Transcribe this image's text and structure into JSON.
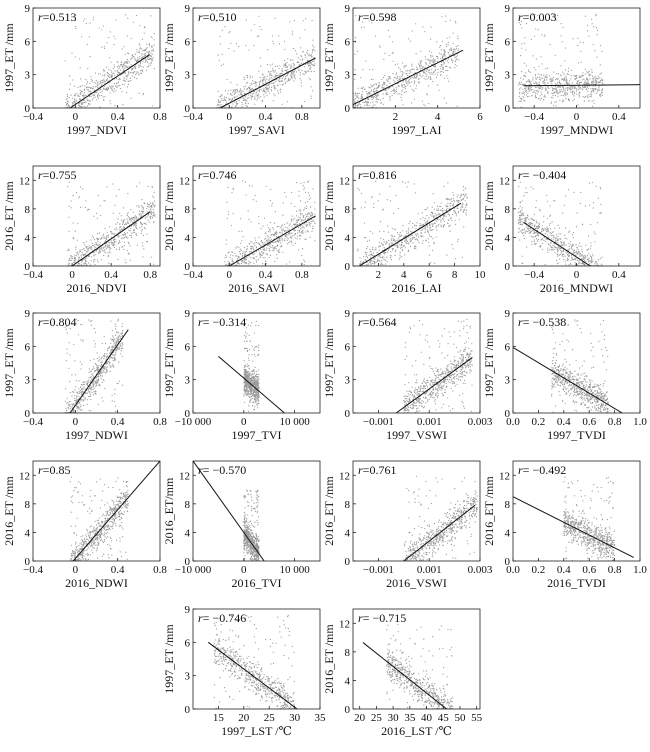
{
  "colors": {
    "points": "#9a9a9a",
    "axis": "#222222",
    "line": "#111111"
  },
  "chart_data": [
    {
      "type": "scatter",
      "xlabel": "1997_NDVI",
      "ylabel": "1997_ET /mm",
      "r_text": "=0.513",
      "xlim": [
        -0.4,
        0.8
      ],
      "ylim": [
        0,
        9
      ],
      "xticks": [
        -0.4,
        0,
        0.4,
        0.8
      ],
      "xtick_labels": [
        "−0.4",
        "0",
        "0.4",
        "0.8"
      ],
      "yticks": [
        0,
        3,
        6,
        9
      ],
      "ytick_labels": [
        "0",
        "3",
        "6",
        "9"
      ],
      "fit_line": [
        [
          -0.05,
          0
        ],
        [
          0.7,
          4.8
        ]
      ],
      "point_cloud": {
        "x_min": -0.1,
        "x_max": 0.75,
        "y_min": 0,
        "y_max": 8.5
      }
    },
    {
      "type": "scatter",
      "xlabel": "1997_SAVI",
      "ylabel": "1997_ET /mm",
      "r_text": "=0.510",
      "xlim": [
        -0.4,
        1.0
      ],
      "ylim": [
        0,
        9
      ],
      "xticks": [
        -0.4,
        0,
        0.4,
        0.8
      ],
      "xtick_labels": [
        "−0.4",
        "0",
        "0.4",
        "0.8"
      ],
      "yticks": [
        0,
        3,
        6,
        9
      ],
      "ytick_labels": [
        "0",
        "3",
        "6",
        "9"
      ],
      "fit_line": [
        [
          -0.1,
          0
        ],
        [
          0.95,
          4.5
        ]
      ],
      "point_cloud": {
        "x_min": -0.15,
        "x_max": 0.95,
        "y_min": 0,
        "y_max": 8.5
      }
    },
    {
      "type": "scatter",
      "xlabel": "1997_LAI",
      "ylabel": "1997_ET /mm",
      "r_text": "=0.598",
      "xlim": [
        0,
        6
      ],
      "ylim": [
        0,
        9
      ],
      "xticks": [
        2,
        4,
        6
      ],
      "xtick_labels": [
        "2",
        "4",
        "6"
      ],
      "yticks": [
        0,
        3,
        6,
        9
      ],
      "ytick_labels": [
        "0",
        "3",
        "6",
        "9"
      ],
      "fit_line": [
        [
          0,
          0.3
        ],
        [
          5.2,
          5.2
        ]
      ],
      "point_cloud": {
        "x_min": 0,
        "x_max": 5,
        "y_min": 0,
        "y_max": 8.5
      }
    },
    {
      "type": "scatter",
      "xlabel": "1997_MNDWI",
      "ylabel": "1997_ET /mm",
      "r_text": "=0.003",
      "xlim": [
        -0.6,
        0.6
      ],
      "ylim": [
        0,
        9
      ],
      "xticks": [
        -0.4,
        0,
        0.4
      ],
      "xtick_labels": [
        "−0.4",
        "0",
        "0.4"
      ],
      "yticks": [
        0,
        3,
        6,
        9
      ],
      "ytick_labels": [
        "0",
        "3",
        "6",
        "9"
      ],
      "fit_line": [
        [
          -0.5,
          2.0
        ],
        [
          0.6,
          2.1
        ]
      ],
      "point_cloud": {
        "x_min": -0.55,
        "x_max": 0.25,
        "y_min": 0,
        "y_max": 8.5
      }
    },
    {
      "type": "scatter",
      "xlabel": "2016_NDVI",
      "ylabel": "2016_ET /mm",
      "r_text": "=0.755",
      "xlim": [
        -0.4,
        0.9
      ],
      "ylim": [
        0,
        14
      ],
      "xticks": [
        -0.4,
        0,
        0.4,
        0.8
      ],
      "xtick_labels": [
        "−0.4",
        "0",
        "0.4",
        "0.8"
      ],
      "yticks": [
        0,
        4,
        8,
        12
      ],
      "ytick_labels": [
        "0",
        "4",
        "8",
        "12"
      ],
      "fit_line": [
        [
          0,
          0
        ],
        [
          0.8,
          7.6
        ]
      ],
      "point_cloud": {
        "x_min": -0.05,
        "x_max": 0.85,
        "y_min": 0,
        "y_max": 12
      }
    },
    {
      "type": "scatter",
      "xlabel": "2016_SAVI",
      "ylabel": "2016_ET /mm",
      "r_text": "=0.746",
      "xlim": [
        -0.4,
        1.0
      ],
      "ylim": [
        0,
        14
      ],
      "xticks": [
        -0.4,
        0,
        0.4,
        0.8
      ],
      "xtick_labels": [
        "−0.4",
        "0",
        "0.4",
        "0.8"
      ],
      "yticks": [
        0,
        4,
        8,
        12
      ],
      "ytick_labels": [
        "0",
        "4",
        "8",
        "12"
      ],
      "fit_line": [
        [
          0,
          0
        ],
        [
          0.95,
          7.0
        ]
      ],
      "point_cloud": {
        "x_min": -0.05,
        "x_max": 0.95,
        "y_min": 0,
        "y_max": 12
      }
    },
    {
      "type": "scatter",
      "xlabel": "2016_LAI",
      "ylabel": "2016_ET /mm",
      "r_text": "=0.816",
      "xlim": [
        0,
        10
      ],
      "ylim": [
        0,
        14
      ],
      "xticks": [
        2,
        4,
        6,
        8,
        10
      ],
      "xtick_labels": [
        "2",
        "4",
        "6",
        "8",
        "10"
      ],
      "yticks": [
        0,
        4,
        8,
        12
      ],
      "ytick_labels": [
        "0",
        "4",
        "8",
        "12"
      ],
      "fit_line": [
        [
          0.5,
          0
        ],
        [
          8.5,
          8.8
        ]
      ],
      "point_cloud": {
        "x_min": 0.3,
        "x_max": 9,
        "y_min": 0,
        "y_max": 12
      }
    },
    {
      "type": "scatter",
      "xlabel": "2016_MNDWI",
      "ylabel": "2016_ET /mm",
      "r_text": "= −0.404",
      "xlim": [
        -0.6,
        0.6
      ],
      "ylim": [
        0,
        14
      ],
      "xticks": [
        -0.4,
        0,
        0.4
      ],
      "xtick_labels": [
        "−0.4",
        "0",
        "0.4"
      ],
      "yticks": [
        0,
        4,
        8,
        12
      ],
      "ytick_labels": [
        "0",
        "4",
        "8",
        "12"
      ],
      "fit_line": [
        [
          -0.5,
          6.1
        ],
        [
          0.13,
          0
        ]
      ],
      "point_cloud": {
        "x_min": -0.55,
        "x_max": 0.25,
        "y_min": 0,
        "y_max": 12
      }
    },
    {
      "type": "scatter",
      "xlabel": "1997_NDWI",
      "ylabel": "1997_ET /mm",
      "r_text": "=0.804",
      "xlim": [
        -0.4,
        0.8
      ],
      "ylim": [
        0,
        9
      ],
      "xticks": [
        -0.4,
        0,
        0.4,
        0.8
      ],
      "xtick_labels": [
        "−0.4",
        "0",
        "0.4",
        "0.8"
      ],
      "yticks": [
        0,
        3,
        6,
        9
      ],
      "ytick_labels": [
        "0",
        "3",
        "6",
        "9"
      ],
      "fit_line": [
        [
          -0.05,
          0
        ],
        [
          0.5,
          7.5
        ]
      ],
      "point_cloud": {
        "x_min": -0.1,
        "x_max": 0.45,
        "y_min": 0,
        "y_max": 8.5
      }
    },
    {
      "type": "scatter",
      "xlabel": "1997_TVI",
      "ylabel": "1997_ET /mm",
      "r_text": "= −0.314",
      "xlim": [
        -10000,
        15000
      ],
      "ylim": [
        0,
        9
      ],
      "xticks": [
        -10000,
        0,
        10000
      ],
      "xtick_labels": [
        "−10 000",
        "0",
        "10 000"
      ],
      "yticks": [
        0,
        3,
        6,
        9
      ],
      "ytick_labels": [
        "0",
        "3",
        "6",
        "9"
      ],
      "fit_line": [
        [
          -5000,
          5.1
        ],
        [
          8000,
          0
        ]
      ],
      "point_cloud": {
        "x_min": 0,
        "x_max": 3000,
        "y_min": 0,
        "y_max": 8.5
      }
    },
    {
      "type": "scatter",
      "xlabel": "1997_VSWI",
      "ylabel": "1997_ET /mm",
      "r_text": "=0.564",
      "xlim": [
        -0.002,
        0.003
      ],
      "ylim": [
        0,
        9
      ],
      "xticks": [
        -0.001,
        0.001,
        0.003
      ],
      "xtick_labels": [
        "−0.001",
        "0.001",
        "0.003"
      ],
      "yticks": [
        0,
        3,
        6,
        9
      ],
      "ytick_labels": [
        "0",
        "3",
        "6",
        "9"
      ],
      "fit_line": [
        [
          -0.0003,
          0
        ],
        [
          0.0027,
          5.0
        ]
      ],
      "point_cloud": {
        "x_min": 0,
        "x_max": 0.0027,
        "y_min": 0,
        "y_max": 8.5
      }
    },
    {
      "type": "scatter",
      "xlabel": "1997_TVDI",
      "ylabel": "1997_ET /mm",
      "r_text": "= −0.538",
      "xlim": [
        0,
        1.0
      ],
      "ylim": [
        0,
        9
      ],
      "xticks": [
        0,
        0.2,
        0.4,
        0.6,
        0.8,
        1.0
      ],
      "xtick_labels": [
        "0.0",
        "0.2",
        "0.4",
        "0.6",
        "0.8",
        "1.0"
      ],
      "yticks": [
        0,
        3,
        6,
        9
      ],
      "ytick_labels": [
        "0",
        "3",
        "6",
        "9"
      ],
      "fit_line": [
        [
          0,
          5.9
        ],
        [
          0.86,
          0
        ]
      ],
      "point_cloud": {
        "x_min": 0.3,
        "x_max": 0.75,
        "y_min": 0,
        "y_max": 8.5
      }
    },
    {
      "type": "scatter",
      "xlabel": "2016_NDWI",
      "ylabel": "2016_ET /mm",
      "r_text": "=0.85",
      "xlim": [
        -0.4,
        0.8
      ],
      "ylim": [
        0,
        14
      ],
      "xticks": [
        -0.4,
        0,
        0.4,
        0.8
      ],
      "xtick_labels": [
        "−0.4",
        "0",
        "0.4",
        "0.8"
      ],
      "yticks": [
        0,
        4,
        8,
        12
      ],
      "ytick_labels": [
        "0",
        "4",
        "8",
        "12"
      ],
      "fit_line": [
        [
          -0.02,
          0
        ],
        [
          0.8,
          14
        ]
      ],
      "point_cloud": {
        "x_min": -0.05,
        "x_max": 0.5,
        "y_min": 0,
        "y_max": 12
      }
    },
    {
      "type": "scatter",
      "xlabel": "2016_TVI",
      "ylabel": "2016_ET/mm",
      "r_text": "= −0.570",
      "xlim": [
        -10000,
        15000
      ],
      "ylim": [
        0,
        14
      ],
      "xticks": [
        -10000,
        0,
        10000
      ],
      "xtick_labels": [
        "−10 000",
        "0",
        "10 000"
      ],
      "yticks": [
        0,
        4,
        8,
        12
      ],
      "ytick_labels": [
        "0",
        "4",
        "8",
        "12"
      ],
      "fit_line": [
        [
          -10000,
          14
        ],
        [
          4000,
          0
        ]
      ],
      "point_cloud": {
        "x_min": 0,
        "x_max": 3000,
        "y_min": 0,
        "y_max": 10
      }
    },
    {
      "type": "scatter",
      "xlabel": "2016_VSWI",
      "ylabel": "2016_ET /mm",
      "r_text": "=0.761",
      "xlim": [
        -0.002,
        0.003
      ],
      "ylim": [
        0,
        14
      ],
      "xticks": [
        -0.001,
        0.001,
        0.003
      ],
      "xtick_labels": [
        "−0.001",
        "0.001",
        "0.003"
      ],
      "yticks": [
        0,
        4,
        8,
        12
      ],
      "ytick_labels": [
        "0",
        "4",
        "8",
        "12"
      ],
      "fit_line": [
        [
          0,
          0
        ],
        [
          0.0028,
          7.8
        ]
      ],
      "point_cloud": {
        "x_min": 0,
        "x_max": 0.0029,
        "y_min": 0,
        "y_max": 12
      }
    },
    {
      "type": "scatter",
      "xlabel": "2016_TVDI",
      "ylabel": "2016_ET /mm",
      "r_text": "= −0.492",
      "xlim": [
        0,
        1.0
      ],
      "ylim": [
        0,
        14
      ],
      "xticks": [
        0,
        0.2,
        0.4,
        0.6,
        0.8,
        1.0
      ],
      "xtick_labels": [
        "0.0",
        "0.2",
        "0.4",
        "0.6",
        "0.8",
        "1.0"
      ],
      "yticks": [
        0,
        4,
        8,
        12
      ],
      "ytick_labels": [
        "0",
        "4",
        "8",
        "12"
      ],
      "fit_line": [
        [
          0,
          9.0
        ],
        [
          0.95,
          0.5
        ]
      ],
      "point_cloud": {
        "x_min": 0.4,
        "x_max": 0.8,
        "y_min": 0,
        "y_max": 12
      }
    },
    {
      "type": "scatter",
      "xlabel": "1997_LST /℃",
      "ylabel": "1997_ET /mm",
      "r_text": "= −0.746",
      "xlim": [
        10,
        35
      ],
      "ylim": [
        0,
        9
      ],
      "xticks": [
        15,
        20,
        25,
        30,
        35
      ],
      "xtick_labels": [
        "15",
        "20",
        "25",
        "30",
        "35"
      ],
      "yticks": [
        0,
        3,
        6,
        9
      ],
      "ytick_labels": [
        "0",
        "3",
        "6",
        "9"
      ],
      "fit_line": [
        [
          13,
          6.0
        ],
        [
          30.5,
          0
        ]
      ],
      "point_cloud": {
        "x_min": 14,
        "x_max": 30,
        "y_min": 0,
        "y_max": 8.5
      }
    },
    {
      "type": "scatter",
      "xlabel": "2016_LST /℃",
      "ylabel": "2016_ET /mm",
      "r_text": "= −0.715",
      "xlim": [
        18,
        56
      ],
      "ylim": [
        0,
        14
      ],
      "xticks": [
        20,
        25,
        30,
        35,
        40,
        45,
        50,
        55
      ],
      "xtick_labels": [
        "20",
        "25",
        "30",
        "35",
        "40",
        "45",
        "50",
        "55"
      ],
      "yticks": [
        0,
        4,
        8,
        12
      ],
      "ytick_labels": [
        "0",
        "4",
        "8",
        "12"
      ],
      "fit_line": [
        [
          21,
          9.3
        ],
        [
          46,
          0
        ]
      ],
      "point_cloud": {
        "x_min": 28,
        "x_max": 48,
        "y_min": 0,
        "y_max": 12
      }
    }
  ]
}
